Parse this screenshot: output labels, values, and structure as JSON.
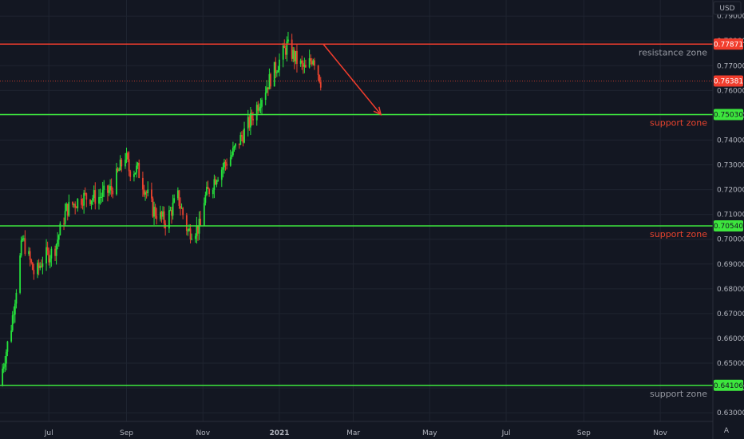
{
  "currency": "USD",
  "scale_mode": "A",
  "colors": {
    "background": "#131722",
    "grid": "#1f2430",
    "up_candle": "#26e33c",
    "down_candle": "#e8432e",
    "support_line": "#3de63d",
    "resistance_line": "#f23d2d",
    "arrow": "#f23d2d",
    "axis_text": "#b2b5be",
    "resistance_label": "#9598a1",
    "support_label_red": "#e8432e",
    "support_label_gray": "#9598a1"
  },
  "chart_data": {
    "type": "candlestick",
    "symbol_currency": "USD",
    "y_ticks": [
      "0.79000",
      "0.78000",
      "0.77000",
      "0.76000",
      "0.75000",
      "0.74000",
      "0.73000",
      "0.72000",
      "0.71000",
      "0.70000",
      "0.69000",
      "0.68000",
      "0.67000",
      "0.66000",
      "0.65000",
      "0.64000",
      "0.63000"
    ],
    "ylim": [
      0.6265,
      0.7965
    ],
    "x_ticks": [
      "Jul",
      "Sep",
      "Nov",
      "2021",
      "Mar",
      "May",
      "Jul",
      "Sep",
      "Nov"
    ],
    "x_range": [
      "2020-05-23",
      "2021-12-13"
    ],
    "x_tick_dates": [
      "2020-07-01",
      "2020-09-01",
      "2020-11-01",
      "2021-01-01",
      "2021-03-01",
      "2021-05-01",
      "2021-07-01",
      "2021-09-01",
      "2021-11-01"
    ],
    "candle_anchors": {
      "dates": [
        "2020-05-23",
        "2020-06-01",
        "2020-06-10",
        "2020-06-20",
        "2020-06-27",
        "2020-07-05",
        "2020-07-15",
        "2020-07-28",
        "2020-08-10",
        "2020-08-20",
        "2020-08-31",
        "2020-09-03",
        "2020-09-10",
        "2020-09-22",
        "2020-10-02",
        "2020-10-12",
        "2020-10-20",
        "2020-10-30",
        "2020-11-02",
        "2020-11-12",
        "2020-11-24",
        "2020-12-08",
        "2020-12-18",
        "2020-12-31",
        "2021-01-07",
        "2021-01-15",
        "2021-01-22",
        "2021-01-28",
        "2021-02-03"
      ],
      "close": [
        0.643,
        0.665,
        0.7,
        0.685,
        0.693,
        0.695,
        0.712,
        0.717,
        0.717,
        0.72,
        0.734,
        0.728,
        0.728,
        0.712,
        0.707,
        0.717,
        0.703,
        0.705,
        0.716,
        0.726,
        0.734,
        0.747,
        0.758,
        0.771,
        0.778,
        0.772,
        0.768,
        0.774,
        0.764
      ]
    },
    "horizontal_levels": [
      {
        "price": 0.77871,
        "label": "resistance zone",
        "kind": "resistance"
      },
      {
        "price": 0.7503,
        "label": "support zone",
        "kind": "support"
      },
      {
        "price": 0.7054,
        "label": "support zone",
        "kind": "support"
      },
      {
        "price": 0.64106,
        "label": "support zone",
        "kind": "support"
      }
    ],
    "price_badges": [
      {
        "price": 0.77871,
        "text": "0.77871",
        "kind": "resistance"
      },
      {
        "price": 0.76381,
        "text": "0.76381",
        "kind": "last"
      },
      {
        "price": 0.7503,
        "text": "0.75030",
        "kind": "support"
      },
      {
        "price": 0.7054,
        "text": "0.70540",
        "kind": "support"
      },
      {
        "price": 0.64106,
        "text": "0.64106",
        "kind": "support"
      }
    ],
    "last_price": 0.76381,
    "projection_arrow": {
      "from": [
        "2021-02-05",
        0.7787
      ],
      "to": [
        "2021-03-23",
        0.7503
      ]
    },
    "grid": true
  }
}
